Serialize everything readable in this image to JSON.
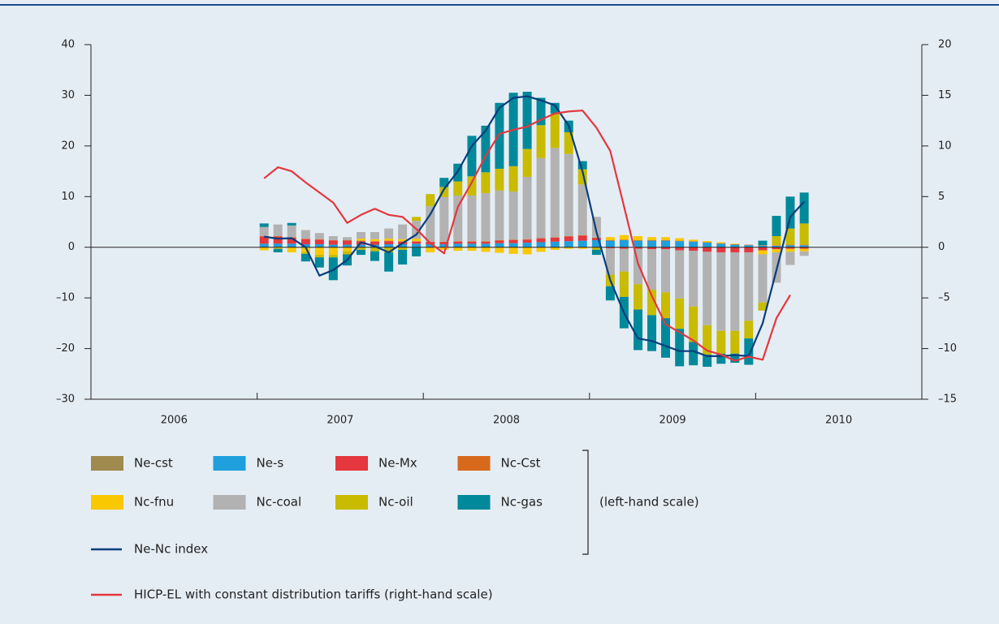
{
  "chart_data": {
    "type": "bar",
    "stacked": true,
    "x": [
      2007.042,
      2007.125,
      2007.208,
      2007.292,
      2007.375,
      2007.458,
      2007.542,
      2007.625,
      2007.708,
      2007.792,
      2007.875,
      2007.958,
      2008.042,
      2008.125,
      2008.208,
      2008.292,
      2008.375,
      2008.458,
      2008.542,
      2008.625,
      2008.708,
      2008.792,
      2008.875,
      2008.958,
      2009.042,
      2009.125,
      2009.208,
      2009.292,
      2009.375,
      2009.458,
      2009.542,
      2009.625,
      2009.708,
      2009.792,
      2009.875,
      2009.958,
      2010.042,
      2010.125,
      2010.208,
      2010.292
    ],
    "xlim": [
      2006,
      2011
    ],
    "xticks": [
      2006,
      2007,
      2008,
      2009,
      2010,
      2011
    ],
    "x_labels": [
      "2006",
      "2007",
      "2008",
      "2009",
      "2010"
    ],
    "ylim": [
      -30,
      40
    ],
    "yticks": [
      {
        "value": -30,
        "label": "–30"
      },
      {
        "value": -20,
        "label": "–20"
      },
      {
        "value": -10,
        "label": "–10"
      },
      0,
      10,
      20,
      30,
      40
    ],
    "y2lim": [
      -15,
      20
    ],
    "y2ticks": [
      {
        "value": -15,
        "label": "–15"
      },
      {
        "value": -10,
        "label": "–10"
      },
      {
        "value": -5,
        "label": "–5"
      },
      0,
      5,
      10,
      15,
      20
    ],
    "legend_note": "(left-hand scale)",
    "series": [
      {
        "name": "Ne-cst",
        "color": "#a08a4e",
        "values": [
          0.1,
          0.1,
          0.1,
          0.1,
          0.1,
          0.1,
          0.1,
          0.1,
          0.1,
          0.1,
          0.1,
          0.1,
          0.1,
          0.1,
          0.1,
          0.1,
          0.1,
          0.1,
          0.1,
          0.1,
          0.1,
          0.1,
          0.1,
          0.1,
          0.1,
          0.1,
          0.1,
          0.1,
          0.1,
          0.1,
          0.1,
          0.1,
          0.1,
          0.1,
          0.1,
          0.1,
          0.1,
          0.1,
          0.1,
          0.1
        ]
      },
      {
        "name": "Ne-s",
        "color": "#1fa0dc",
        "values": [
          0.6,
          0.6,
          0.6,
          0.5,
          0.5,
          0.4,
          0.4,
          0.4,
          0.4,
          0.5,
          0.5,
          0.6,
          0.5,
          0.5,
          0.6,
          0.6,
          0.6,
          0.7,
          0.7,
          0.8,
          0.9,
          1.0,
          1.1,
          1.2,
          1.3,
          1.2,
          1.3,
          1.2,
          1.2,
          1.2,
          1.1,
          1.0,
          0.8,
          0.6,
          0.4,
          0.3,
          0.2,
          0.2,
          0.3,
          0.3
        ]
      },
      {
        "name": "Ne-Mx",
        "color": "#e4373e",
        "values": [
          1.4,
          1.4,
          1.2,
          1.0,
          0.9,
          0.8,
          0.8,
          0.7,
          0.6,
          0.6,
          0.5,
          0.4,
          0.4,
          0.4,
          0.4,
          0.4,
          0.4,
          0.5,
          0.6,
          0.6,
          0.7,
          0.8,
          0.9,
          1.0,
          0.4,
          -0.2,
          -0.3,
          -0.3,
          -0.4,
          -0.4,
          -0.6,
          -0.7,
          -0.9,
          -1.0,
          -1.0,
          -1.0,
          -0.6,
          -0.4,
          -0.3,
          -0.3
        ]
      },
      {
        "name": "Nc-Cst",
        "color": "#d8691c",
        "values": [
          0.1,
          0.1,
          0.1,
          0.1,
          0.1,
          0.1,
          0.1,
          0.1,
          0.1,
          0.1,
          0.1,
          0.1,
          0.1,
          0.1,
          0.1,
          0.1,
          0.1,
          0.1,
          0.1,
          0.1,
          0.1,
          0.1,
          0.1,
          0.1,
          0.1,
          0.1,
          0.1,
          0.1,
          0.1,
          0.1,
          0.1,
          0.1,
          0.1,
          0.1,
          0.1,
          0.1,
          0.1,
          0.1,
          0.1,
          0.1
        ]
      },
      {
        "name": "Nc-fnu",
        "color": "#f9c800",
        "values": [
          -0.6,
          -0.3,
          -1.0,
          -1.0,
          -1.5,
          -1.5,
          -0.8,
          0.4,
          0.4,
          0.4,
          0.4,
          0.5,
          -1.0,
          -0.5,
          -0.7,
          -0.7,
          -0.9,
          -1.1,
          -1.3,
          -1.4,
          -0.9,
          -0.5,
          -0.3,
          -0.3,
          0,
          0.6,
          0.9,
          0.8,
          0.6,
          0.6,
          0.5,
          0.3,
          0.2,
          0.2,
          0.1,
          0,
          -0.8,
          -0.6,
          -0.6,
          -0.5
        ]
      },
      {
        "name": "Nc-coal",
        "color": "#b2b2b2",
        "values": [
          1.8,
          2.3,
          2.3,
          1.7,
          1.2,
          0.8,
          0.6,
          1.3,
          1.4,
          2.0,
          2.9,
          3.5,
          7.0,
          8.8,
          9.0,
          9.0,
          9.5,
          9.8,
          9.5,
          12.3,
          15.8,
          17.6,
          16.2,
          10.0,
          4.1,
          -5.2,
          -4.5,
          -7.0,
          -8.0,
          -8.5,
          -9.5,
          -11.0,
          -14.5,
          -15.5,
          -15.5,
          -13.5,
          -9.5,
          -6.0,
          -2.6,
          -0.9
        ]
      },
      {
        "name": "Nc-oil",
        "color": "#c8bb00",
        "values": [
          0,
          0,
          0,
          -0.3,
          -0.5,
          -0.5,
          -0.6,
          -0.5,
          -0.8,
          -1.0,
          -0.5,
          0.8,
          2.4,
          2.0,
          2.8,
          3.8,
          4.1,
          4.3,
          5.0,
          5.5,
          6.5,
          6.8,
          4.3,
          3.0,
          -0.5,
          -2.3,
          -5.0,
          -5.0,
          -5.0,
          -5.1,
          -6.0,
          -7.0,
          -5.8,
          -4.5,
          -4.5,
          -3.5,
          -1.6,
          1.8,
          3.2,
          4.2
        ]
      },
      {
        "name": "Nc-gas",
        "color": "#00899a",
        "values": [
          0.7,
          -0.7,
          0.5,
          -1.5,
          -2.0,
          -4.5,
          -2.2,
          -1.0,
          -1.9,
          -3.8,
          -2.9,
          -1.8,
          0,
          1.8,
          3.5,
          8.0,
          9.2,
          13.0,
          14.5,
          11.3,
          5.4,
          2.1,
          2.3,
          1.6,
          -1.0,
          -2.8,
          -6.2,
          -8.0,
          -7.1,
          -7.8,
          -7.4,
          -4.6,
          -2.4,
          -2.0,
          -1.8,
          -5.2,
          0.9,
          4.0,
          6.3,
          6.1
        ]
      },
      {
        "name": "Ne-Nc index",
        "type": "line",
        "color": "#0a3d7c",
        "values": [
          2.1,
          1.7,
          1.8,
          0,
          -5.6,
          -4.5,
          -2.5,
          1.0,
          0.2,
          -1.0,
          0.8,
          2.5,
          6.5,
          11.5,
          15,
          20,
          23,
          27.5,
          29.5,
          29.8,
          29,
          28,
          24,
          15,
          3,
          -6.5,
          -13,
          -18,
          -18.5,
          -19.5,
          -20.5,
          -20.5,
          -21.5,
          -21.5,
          -21.3,
          -21.5,
          -15,
          -4.5,
          6.0,
          9.0
        ]
      },
      {
        "name": "HICP-EL with constant distribution tariffs (right-hand scale)",
        "type": "line",
        "axis": "y2",
        "color": "#e4373e",
        "values": [
          6.8,
          7.9,
          7.5,
          6.4,
          5.4,
          4.4,
          2.4,
          3.2,
          3.8,
          3.2,
          3.0,
          1.8,
          0.4,
          -0.6,
          4.0,
          6.4,
          9.0,
          11.2,
          11.6,
          11.9,
          12.6,
          13.2,
          13.4,
          13.5,
          11.8,
          9.5,
          4.0,
          -1.6,
          -4.8,
          -7.6,
          -8.4,
          -9.2,
          -10.2,
          -10.6,
          -11.2,
          -10.8,
          -11.1,
          -7.0,
          -4.7,
          null
        ]
      }
    ]
  }
}
